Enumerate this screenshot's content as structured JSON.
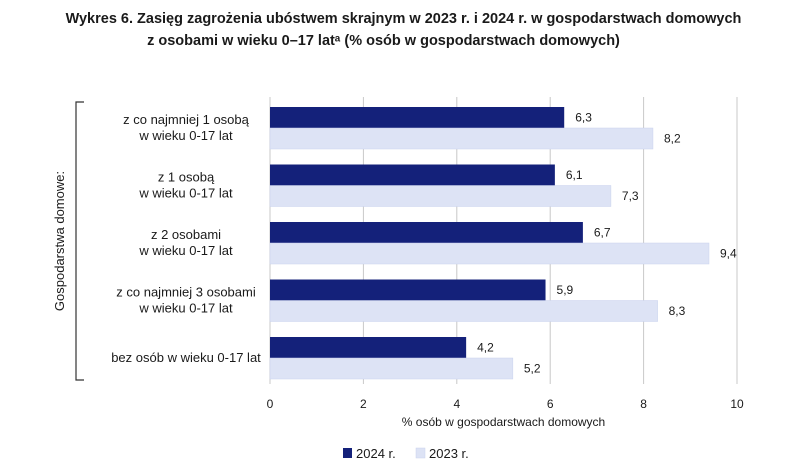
{
  "title_line1": "Wykres 6. Zasięg zagrożenia ubóstwem skrajnym w 2023 r. i 2024 r. w gospodarstwach domowych",
  "title_line2": "z osobami w wieku 0–17 latᵃ (% osób w gospodarstwach domowych)",
  "chart_data": {
    "type": "bar",
    "orientation": "horizontal",
    "group_label": "Gospodarstwa domowe:",
    "categories": [
      [
        "z co najmniej 1 osobą",
        "w wieku 0-17 lat"
      ],
      [
        "z 1 osobą",
        "w wieku 0-17 lat"
      ],
      [
        "z 2 osobami",
        "w wieku 0-17 lat"
      ],
      [
        "z co najmniej 3 osobami",
        "w wieku 0-17 lat"
      ],
      [
        "bez osób w wieku 0-17 lat"
      ]
    ],
    "series": [
      {
        "name": "2024 r.",
        "color": "#14217a",
        "values": [
          6.3,
          6.1,
          6.7,
          5.9,
          4.2
        ],
        "labels": [
          "6,3",
          "6,1",
          "6,7",
          "5,9",
          "4,2"
        ]
      },
      {
        "name": "2023 r.",
        "color": "#dde3f5",
        "values": [
          8.2,
          7.3,
          9.4,
          8.3,
          5.2
        ],
        "labels": [
          "8,2",
          "7,3",
          "9,4",
          "8,3",
          "5,2"
        ]
      }
    ],
    "xlabel": "% osób w gospodarstwach domowych",
    "xlim": [
      0,
      10
    ],
    "xticks": [
      0,
      2,
      4,
      6,
      8,
      10
    ],
    "grid": true,
    "legend_position": "bottom"
  }
}
